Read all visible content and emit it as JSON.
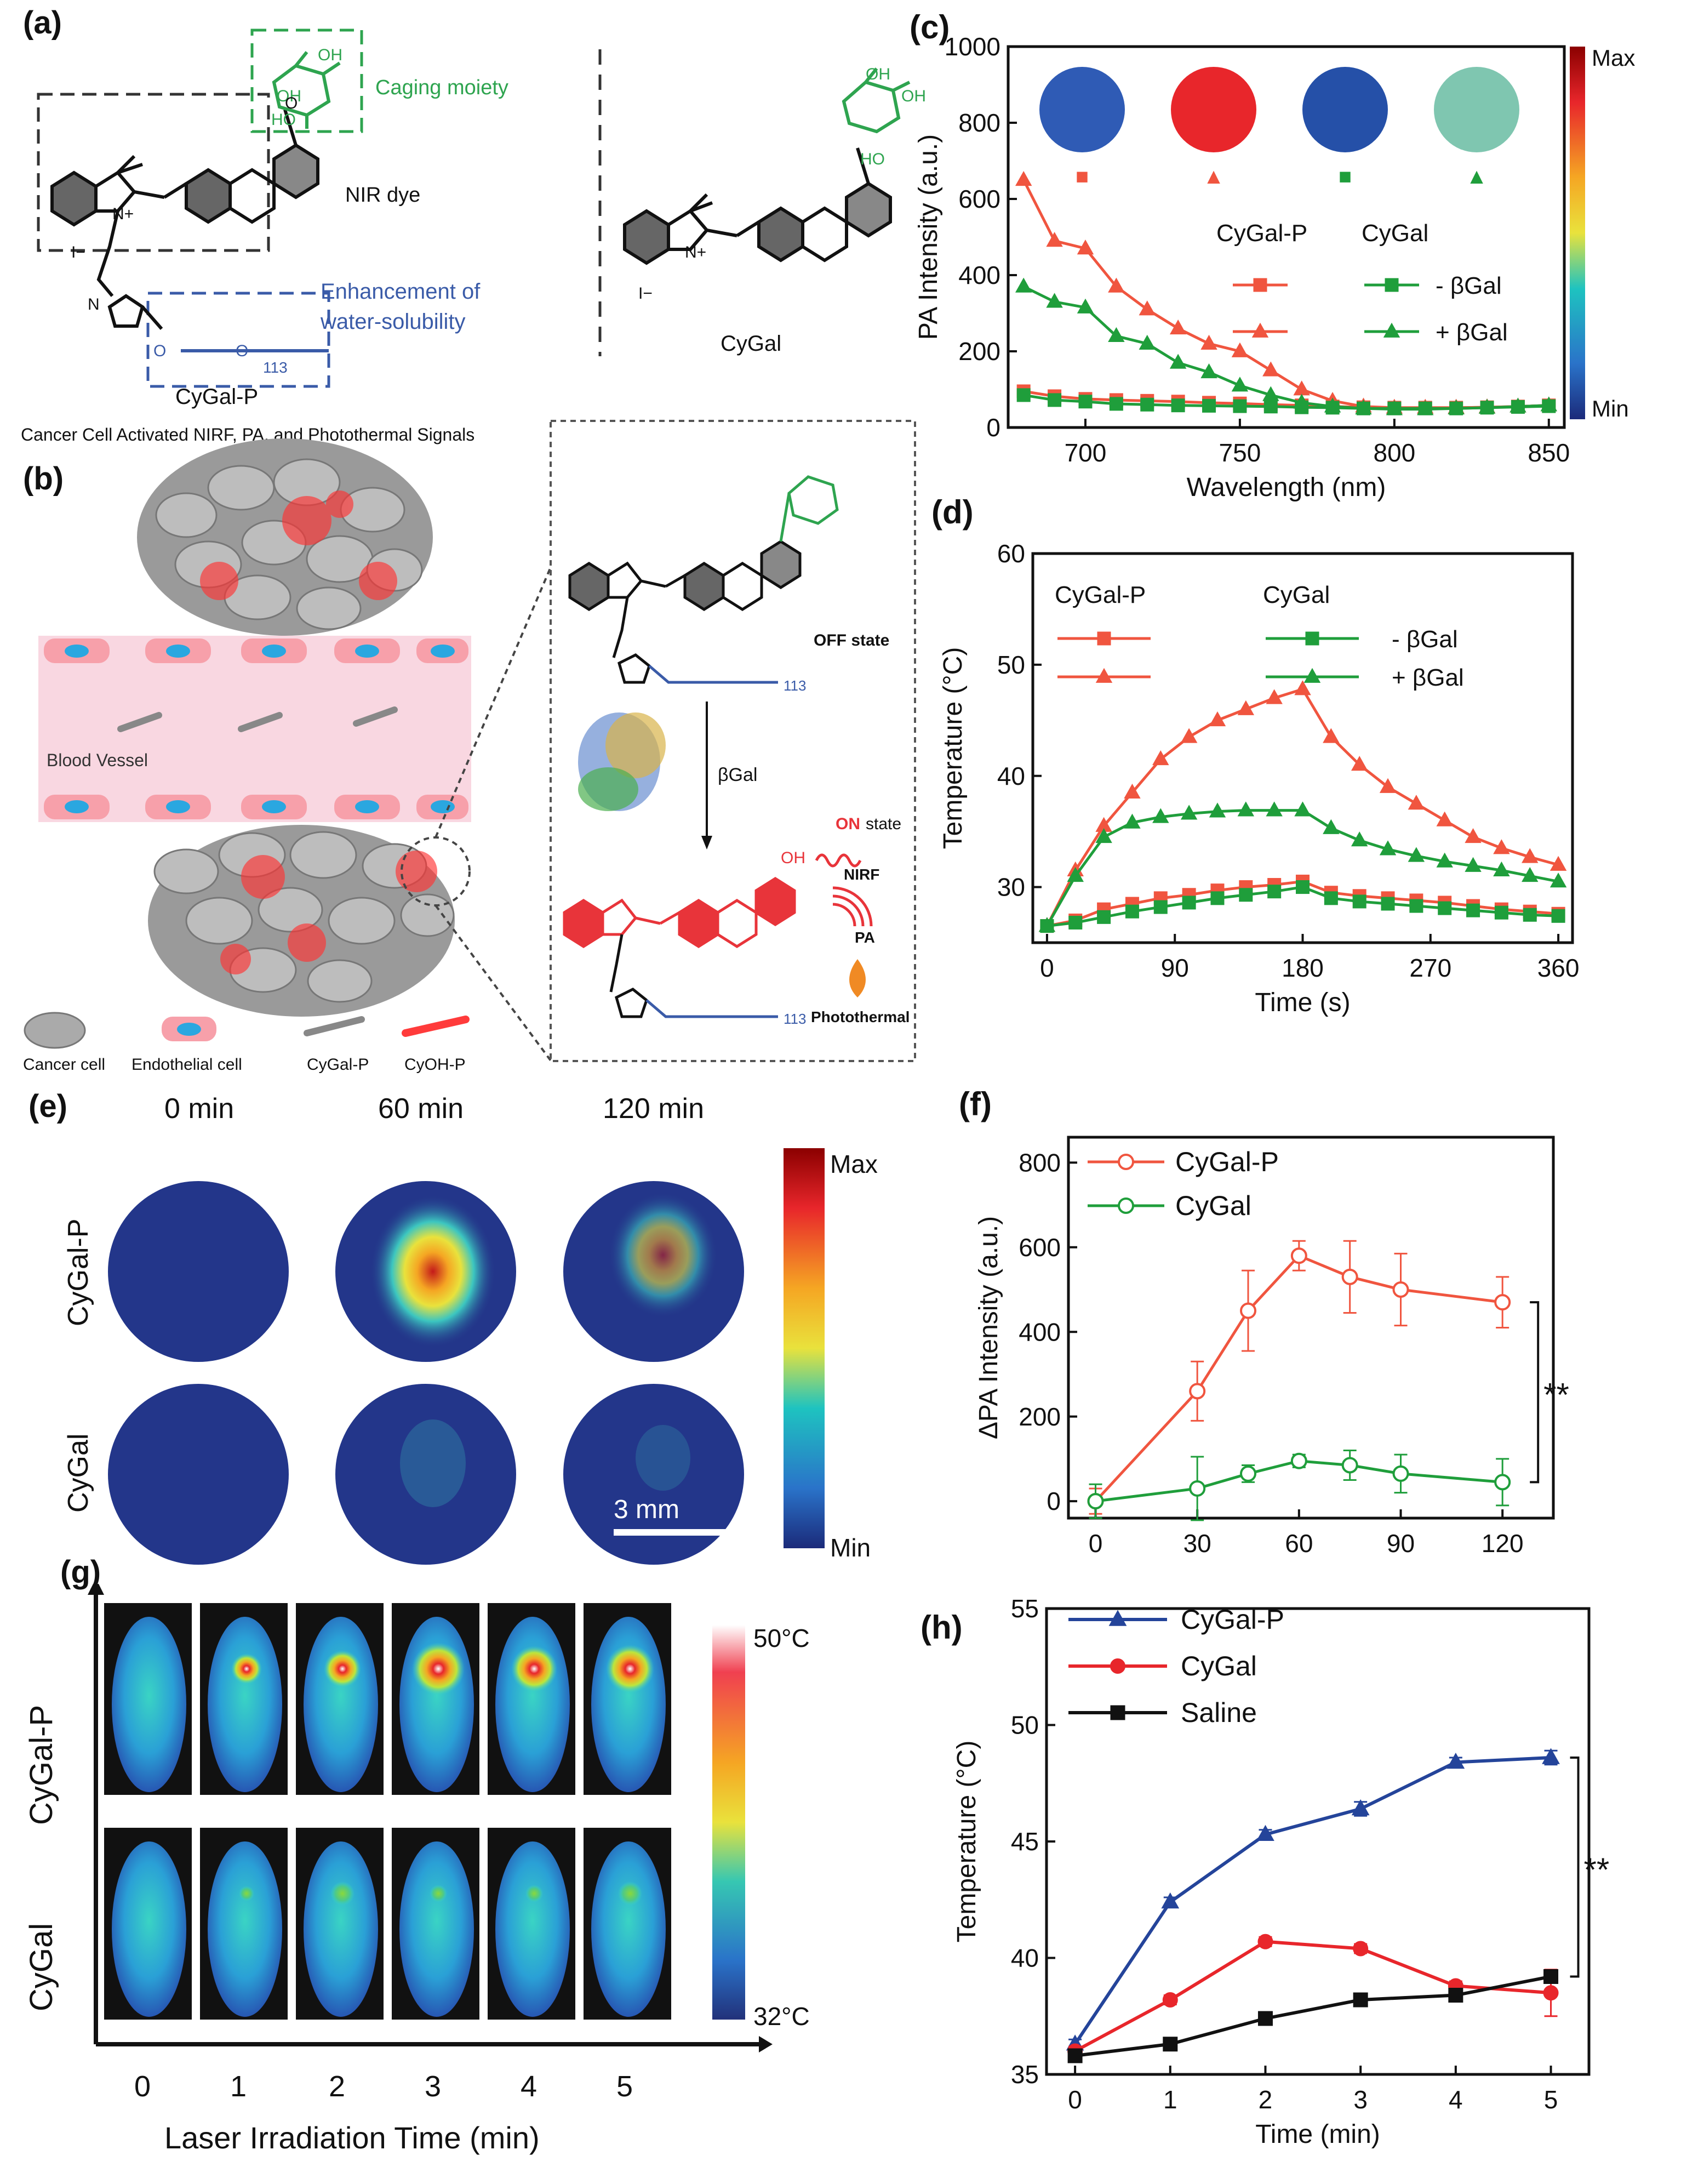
{
  "colors": {
    "red": "#f0553f",
    "green": "#1f9e3b",
    "blue": "#24449a",
    "black": "#111111",
    "dye_green": "#2ea44f",
    "dye_blue": "#3a5ba8",
    "dye_red": "#e8343a"
  },
  "panel_a": {
    "label": "(a)",
    "caging": "Caging moiety",
    "nir": "NIR dye",
    "enhance_line1": "Enhancement of",
    "enhance_line2": "water-solubility",
    "compound_p": "CyGal-P",
    "compound": "CyGal",
    "sub113": "113",
    "oh": "OH",
    "ho": "HO",
    "o": "O",
    "n": "N",
    "nplus": "N+",
    "iminus": "I−"
  },
  "panel_b": {
    "label": "(b)",
    "title": "Cancer Cell Activated NIRF, PA, and Photothermal Signals",
    "blood_vessel": "Blood Vessel",
    "off_state": "OFF state",
    "on_word": "ON",
    "on_state": "state",
    "enzyme": "βGal",
    "nirf": "NIRF",
    "pa": "PA",
    "photothermal": "Photothermal",
    "legend": [
      "Cancer cell",
      "Endothelial cell",
      "CyGal-P",
      "CyOH-P"
    ]
  },
  "panel_e": {
    "label": "(e)",
    "times": [
      "0 min",
      "60 min",
      "120 min"
    ],
    "rows": [
      "CyGal-P",
      "CyGal"
    ],
    "scale": "3 mm",
    "max": "Max",
    "min": "Min"
  },
  "panel_g": {
    "label": "(g)",
    "rows": [
      "CyGal-P",
      "CyGal"
    ],
    "ticks": [
      "0",
      "1",
      "2",
      "3",
      "4",
      "5"
    ],
    "xlabel": "Laser Irradiation Time (min)",
    "max": "50°C",
    "min": "32°C"
  },
  "chart_data": [
    {
      "id": "c",
      "type": "line",
      "label": "(c)",
      "title": "",
      "xlabel": "Wavelength (nm)",
      "ylabel": "PA Intensity (a.u.)",
      "xlim": [
        675,
        855
      ],
      "ylim": [
        0,
        1000
      ],
      "xticks": [
        700,
        750,
        800,
        850
      ],
      "yticks": [
        0,
        200,
        400,
        600,
        800,
        1000
      ],
      "legend_headers": [
        "CyGal-P",
        "CyGal"
      ],
      "legend_labels": [
        "- βGal",
        "+ βGal"
      ],
      "colorbar": {
        "max": "Max",
        "min": "Min"
      },
      "inset_markers": [
        "■",
        "▲",
        "■",
        "▲"
      ],
      "series": [
        {
          "name": "CyGal-P - βGal",
          "color": "#f0553f",
          "marker": "square",
          "x": [
            680,
            690,
            700,
            710,
            720,
            730,
            740,
            750,
            760,
            770,
            780,
            790,
            800,
            810,
            820,
            830,
            840,
            850
          ],
          "y": [
            95,
            82,
            75,
            72,
            70,
            68,
            65,
            63,
            60,
            58,
            55,
            53,
            52,
            52,
            52,
            53,
            55,
            58
          ]
        },
        {
          "name": "CyGal-P + βGal",
          "color": "#f0553f",
          "marker": "triangle",
          "x": [
            680,
            690,
            700,
            710,
            720,
            730,
            740,
            750,
            760,
            770,
            780,
            790,
            800,
            810,
            820,
            830,
            840,
            850
          ],
          "y": [
            650,
            490,
            470,
            370,
            310,
            260,
            220,
            200,
            150,
            100,
            70,
            55,
            52,
            52,
            52,
            53,
            55,
            58
          ]
        },
        {
          "name": "CyGal - βGal",
          "color": "#1f9e3b",
          "marker": "square",
          "x": [
            680,
            690,
            700,
            710,
            720,
            730,
            740,
            750,
            760,
            770,
            780,
            790,
            800,
            810,
            820,
            830,
            840,
            850
          ],
          "y": [
            85,
            72,
            68,
            62,
            60,
            58,
            57,
            56,
            55,
            53,
            52,
            50,
            50,
            50,
            50,
            52,
            54,
            56
          ]
        },
        {
          "name": "CyGal + βGal",
          "color": "#1f9e3b",
          "marker": "triangle",
          "x": [
            680,
            690,
            700,
            710,
            720,
            730,
            740,
            750,
            760,
            770,
            780,
            790,
            800,
            810,
            820,
            830,
            840,
            850
          ],
          "y": [
            370,
            330,
            315,
            240,
            220,
            170,
            145,
            110,
            85,
            65,
            55,
            50,
            48,
            48,
            50,
            52,
            55,
            58
          ]
        }
      ]
    },
    {
      "id": "d",
      "type": "line",
      "label": "(d)",
      "xlabel": "Time (s)",
      "ylabel": "Temperature (°C)",
      "xlim": [
        -10,
        370
      ],
      "ylim": [
        25,
        60
      ],
      "xticks": [
        0,
        90,
        180,
        270,
        360
      ],
      "yticks": [
        30,
        40,
        50,
        60
      ],
      "legend_headers": [
        "CyGal-P",
        "CyGal"
      ],
      "legend_labels": [
        "- βGal",
        "+ βGal"
      ],
      "series": [
        {
          "name": "CyGal-P - βGal",
          "color": "#f0553f",
          "marker": "square",
          "x": [
            0,
            20,
            40,
            60,
            80,
            100,
            120,
            140,
            160,
            180,
            200,
            220,
            240,
            260,
            280,
            300,
            320,
            340,
            360
          ],
          "y": [
            26.5,
            27,
            28,
            28.5,
            29,
            29.3,
            29.7,
            30,
            30.2,
            30.5,
            29.5,
            29.2,
            29,
            28.8,
            28.6,
            28.3,
            28,
            27.8,
            27.6
          ]
        },
        {
          "name": "CyGal-P + βGal",
          "color": "#f0553f",
          "marker": "triangle",
          "x": [
            0,
            20,
            40,
            60,
            80,
            100,
            120,
            140,
            160,
            180,
            200,
            220,
            240,
            260,
            280,
            300,
            320,
            340,
            360
          ],
          "y": [
            26.5,
            31.5,
            35.5,
            38.5,
            41.5,
            43.5,
            45,
            46,
            47,
            47.8,
            43.5,
            41,
            39,
            37.5,
            36,
            34.5,
            33.5,
            32.7,
            32
          ]
        },
        {
          "name": "CyGal - βGal",
          "color": "#1f9e3b",
          "marker": "square",
          "x": [
            0,
            20,
            40,
            60,
            80,
            100,
            120,
            140,
            160,
            180,
            200,
            220,
            240,
            260,
            280,
            300,
            320,
            340,
            360
          ],
          "y": [
            26.5,
            26.8,
            27.3,
            27.8,
            28.2,
            28.6,
            29,
            29.3,
            29.6,
            30,
            29,
            28.7,
            28.5,
            28.3,
            28.1,
            27.9,
            27.7,
            27.5,
            27.4
          ]
        },
        {
          "name": "CyGal + βGal",
          "color": "#1f9e3b",
          "marker": "triangle",
          "x": [
            0,
            20,
            40,
            60,
            80,
            100,
            120,
            140,
            160,
            180,
            200,
            220,
            240,
            260,
            280,
            300,
            320,
            340,
            360
          ],
          "y": [
            26.5,
            31,
            34.5,
            35.8,
            36.3,
            36.6,
            36.8,
            36.9,
            36.9,
            36.9,
            35.3,
            34.2,
            33.4,
            32.8,
            32.3,
            31.9,
            31.5,
            31,
            30.5
          ]
        }
      ]
    },
    {
      "id": "f",
      "type": "line",
      "label": "(f)",
      "xlabel": "",
      "ylabel": "ΔPA Intensity (a.u.)",
      "xlim": [
        -8,
        135
      ],
      "ylim": [
        -40,
        860
      ],
      "xticks": [
        0,
        30,
        60,
        90,
        120
      ],
      "yticks": [
        0,
        200,
        400,
        600,
        800
      ],
      "significance": "**",
      "series": [
        {
          "name": "CyGal-P",
          "color": "#f0553f",
          "marker": "circle",
          "x": [
            0,
            30,
            45,
            60,
            75,
            90,
            120
          ],
          "y": [
            0,
            260,
            450,
            580,
            530,
            500,
            470
          ],
          "err": [
            30,
            70,
            95,
            35,
            85,
            85,
            60
          ]
        },
        {
          "name": "CyGal",
          "color": "#1f9e3b",
          "marker": "circle",
          "x": [
            0,
            30,
            45,
            60,
            75,
            90,
            120
          ],
          "y": [
            0,
            30,
            65,
            95,
            85,
            65,
            45
          ],
          "err": [
            40,
            75,
            20,
            15,
            35,
            45,
            55
          ]
        }
      ]
    },
    {
      "id": "h",
      "type": "line",
      "label": "(h)",
      "xlabel": "Time (min)",
      "ylabel": "Temperature (°C)",
      "xlim": [
        -0.3,
        5.4
      ],
      "ylim": [
        35,
        55
      ],
      "xticks": [
        0,
        1,
        2,
        3,
        4,
        5
      ],
      "yticks": [
        35,
        40,
        45,
        50,
        55
      ],
      "significance": "**",
      "series": [
        {
          "name": "CyGal-P",
          "color": "#24449a",
          "marker": "triangle",
          "x": [
            0,
            1,
            2,
            3,
            4,
            5
          ],
          "y": [
            36.3,
            42.4,
            45.3,
            46.4,
            48.4,
            48.6
          ],
          "err": [
            0.2,
            0.2,
            0.2,
            0.3,
            0.2,
            0.3
          ]
        },
        {
          "name": "CyGal",
          "color": "#e8262b",
          "marker": "circle",
          "x": [
            0,
            1,
            2,
            3,
            4,
            5
          ],
          "y": [
            36,
            38.2,
            40.7,
            40.4,
            38.8,
            38.5
          ],
          "err": [
            0.2,
            0.2,
            0.2,
            0.2,
            0.2,
            1
          ]
        },
        {
          "name": "Saline",
          "color": "#111111",
          "marker": "square",
          "x": [
            0,
            1,
            2,
            3,
            4,
            5
          ],
          "y": [
            35.8,
            36.3,
            37.4,
            38.2,
            38.4,
            39.2
          ],
          "err": [
            0.1,
            0.1,
            0.2,
            0.1,
            0.2,
            0.2
          ]
        }
      ]
    }
  ]
}
